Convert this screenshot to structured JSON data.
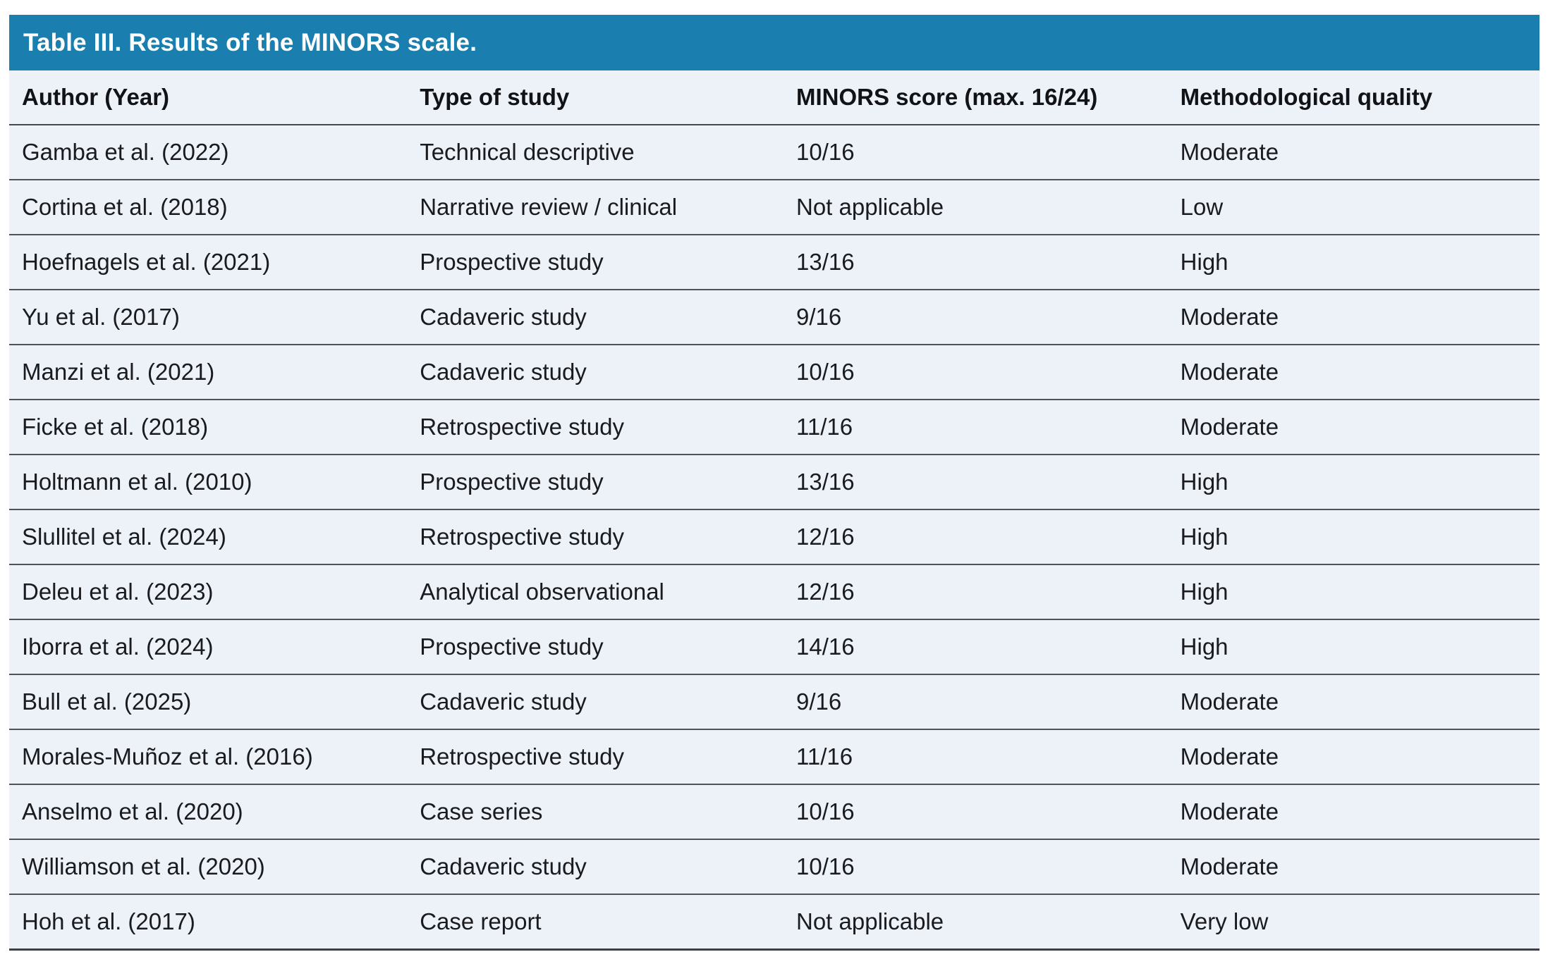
{
  "table": {
    "title": "Table III. Results of the MINORS scale.",
    "columns": [
      "Author (Year)",
      "Type of study",
      "MINORS score (max. 16/24)",
      "Methodological quality"
    ],
    "rows": [
      [
        "Gamba et al. (2022)",
        "Technical descriptive",
        "10/16",
        "Moderate"
      ],
      [
        "Cortina et al. (2018)",
        "Narrative review / clinical",
        "Not applicable",
        "Low"
      ],
      [
        "Hoefnagels et al. (2021)",
        "Prospective study",
        "13/16",
        "High"
      ],
      [
        "Yu et al. (2017)",
        "Cadaveric study",
        "9/16",
        "Moderate"
      ],
      [
        "Manzi et al. (2021)",
        "Cadaveric study",
        "10/16",
        "Moderate"
      ],
      [
        "Ficke et al. (2018)",
        "Retrospective study",
        "11/16",
        "Moderate"
      ],
      [
        "Holtmann et al. (2010)",
        "Prospective study",
        "13/16",
        "High"
      ],
      [
        "Slullitel et al. (2024)",
        "Retrospective study",
        "12/16",
        "High"
      ],
      [
        "Deleu et al. (2023)",
        "Analytical observational",
        "12/16",
        "High"
      ],
      [
        "Iborra et al. (2024)",
        "Prospective study",
        "14/16",
        "High"
      ],
      [
        "Bull et al. (2025)",
        "Cadaveric study",
        "9/16",
        "Moderate"
      ],
      [
        "Morales-Muñoz et al. (2016)",
        "Retrospective study",
        "11/16",
        "Moderate"
      ],
      [
        "Anselmo et al. (2020)",
        "Case series",
        "10/16",
        "Moderate"
      ],
      [
        "Williamson et al. (2020)",
        "Cadaveric study",
        "10/16",
        "Moderate"
      ],
      [
        "Hoh et al. (2017)",
        "Case report",
        "Not applicable",
        "Very low"
      ]
    ]
  },
  "colors": {
    "title_bar": "#1a7fae",
    "row_background": "#edf1f8",
    "divider": "#4f5258",
    "title_text": "#ffffff",
    "body_text": "#1a1b1e"
  }
}
